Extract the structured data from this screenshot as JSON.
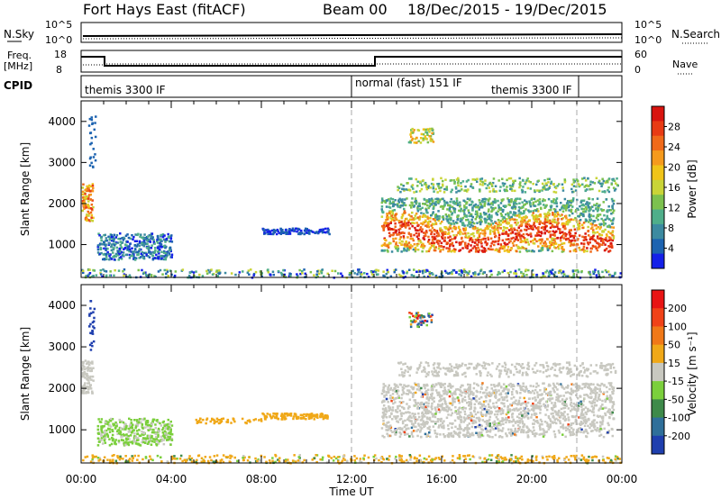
{
  "header": {
    "station": "Fort Hays East (fitACF)",
    "beam": "Beam 00",
    "date_range": "18/Dec/2015 - 19/Dec/2015"
  },
  "aux_panels": {
    "nsky_label": "N.Sky",
    "nsky_ticks": [
      "10^5",
      "10^0"
    ],
    "nsearch_label": "N.Search",
    "nsearch_ticks": [
      "10^5",
      "10^0"
    ],
    "freq_label_line1": "Freq.",
    "freq_label_line2": "[MHz]",
    "freq_ticks": [
      "18",
      "8"
    ],
    "nave_label": "Nave",
    "nave_ticks": [
      "60",
      "0"
    ],
    "cpid_label": "CPID",
    "cpid_segments": [
      "themis 3300 IF",
      "normal (fast) 151 IF",
      "themis 3300 IF"
    ]
  },
  "x_axis": {
    "ticks": [
      "00:00",
      "04:00",
      "08:00",
      "12:00",
      "16:00",
      "20:00",
      "00:00"
    ],
    "label": "Time UT"
  },
  "chart_data": [
    {
      "type": "heatmap",
      "name": "power-panel",
      "ylabel": "Slant Range [km]",
      "yticks": [
        1000,
        2000,
        3000,
        4000
      ],
      "ylim": [
        200,
        4500
      ],
      "xlim_hours": [
        0,
        24
      ],
      "colorbar_label": "Power [dB]",
      "colorbar_ticks": [
        "28",
        "24",
        "20",
        "16",
        "12",
        "8",
        "4"
      ],
      "colorbar_colors": [
        "#1420e8",
        "#1d63b0",
        "#3c8aa0",
        "#4fae8a",
        "#7cc14e",
        "#c9d437",
        "#f0c419",
        "#f59a1d",
        "#f06a1a",
        "#e83b14",
        "#d8140f"
      ]
    },
    {
      "type": "heatmap",
      "name": "velocity-panel",
      "ylabel": "Slant Range [km]",
      "yticks": [
        1000,
        2000,
        3000,
        4000
      ],
      "ylim": [
        200,
        4500
      ],
      "xlim_hours": [
        0,
        24
      ],
      "colorbar_label": "Velocity [m s⁻¹]",
      "colorbar_ticks": [
        "200",
        "100",
        "50",
        "15",
        "-15",
        "-50",
        "-100",
        "-200"
      ],
      "colorbar_colors": [
        "#1f3fae",
        "#2f6f9a",
        "#3e8a4a",
        "#7bcf3c",
        "#c8c8c0",
        "#f0a818",
        "#f07818",
        "#f04218",
        "#e81414"
      ]
    }
  ]
}
